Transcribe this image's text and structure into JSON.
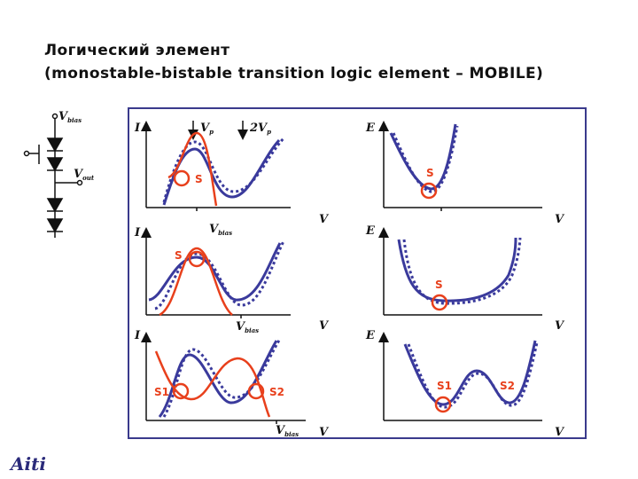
{
  "title": {
    "line1": "Логический элемент",
    "line2": "(monostable-bistable transition logic element – MOBILE)"
  },
  "circuit": {
    "vbias_main": "V",
    "vbias_sub": "bias",
    "vout_main": "V",
    "vout_sub": "out"
  },
  "axes": {
    "current": "I",
    "voltage": "V",
    "energy": "E"
  },
  "markers": {
    "vp_main": "V",
    "vp_sub": "p",
    "two_vp_prefix": "2",
    "two_vp_main": "V",
    "two_vp_sub": "p",
    "vbias_main": "V",
    "vbias_sub": "bias"
  },
  "state_labels": {
    "s": "S",
    "s1": "S1",
    "s2": "S2"
  },
  "colors": {
    "blue": "#3a3a9c",
    "red": "#e8401c",
    "frame": "#3a3a8c"
  },
  "logo": "Aiti"
}
